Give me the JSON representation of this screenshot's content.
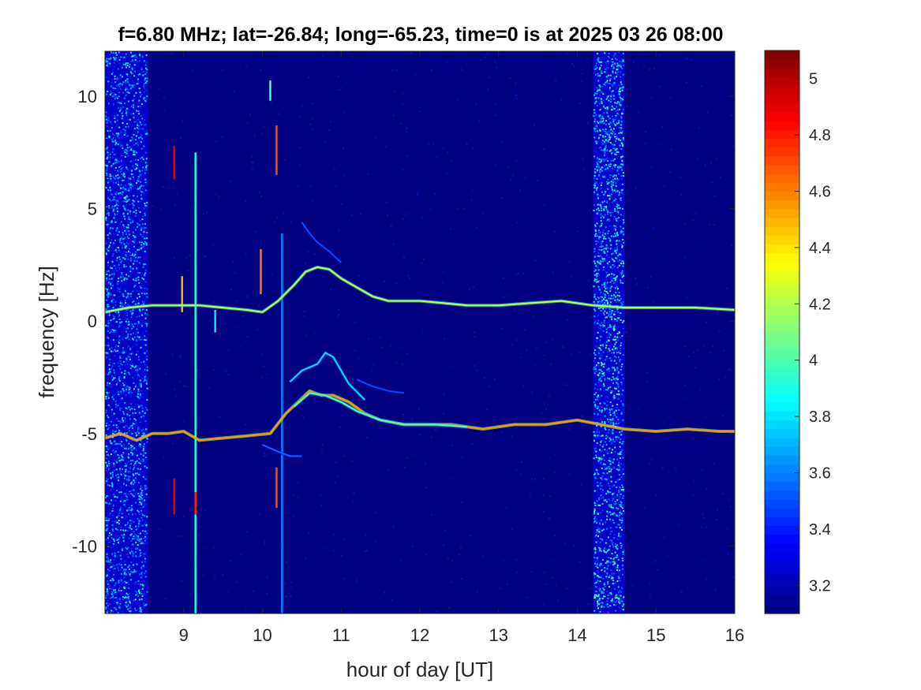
{
  "chart_data": {
    "type": "heatmap",
    "title": "f=6.80 MHz;  lat=-26.84; long=-65.23, time=0 is at 2025 03 26 08:00",
    "xlabel": "hour of day [UT]",
    "ylabel": "frequency [Hz]",
    "xlim": [
      8,
      16
    ],
    "ylim": [
      -13,
      12
    ],
    "xticks": [
      9,
      10,
      11,
      12,
      13,
      14,
      15,
      16
    ],
    "yticks": [
      -10,
      -5,
      0,
      5,
      10
    ],
    "colorbar": {
      "clim": [
        3.1,
        5.1
      ],
      "ticks": [
        3.2,
        3.4,
        3.6,
        3.8,
        4,
        4.2,
        4.4,
        4.6,
        4.8,
        5
      ],
      "colormap": "jet"
    },
    "noise_bands": [
      {
        "x_start": 8.0,
        "x_end": 8.55,
        "level": 3.75
      },
      {
        "x_start": 14.2,
        "x_end": 14.6,
        "level": 3.85
      }
    ],
    "traces": [
      {
        "points": [
          [
            8.0,
            0.4
          ],
          [
            8.3,
            0.6
          ],
          [
            8.6,
            0.7
          ],
          [
            8.9,
            0.7
          ],
          [
            9.2,
            0.7
          ],
          [
            9.5,
            0.6
          ],
          [
            9.8,
            0.5
          ],
          [
            10.0,
            0.4
          ],
          [
            10.2,
            0.9
          ],
          [
            10.4,
            1.6
          ],
          [
            10.55,
            2.2
          ],
          [
            10.7,
            2.4
          ],
          [
            10.85,
            2.3
          ],
          [
            11.0,
            1.9
          ],
          [
            11.2,
            1.5
          ],
          [
            11.4,
            1.1
          ],
          [
            11.6,
            0.9
          ],
          [
            11.8,
            0.9
          ],
          [
            12.0,
            0.9
          ],
          [
            12.3,
            0.8
          ],
          [
            12.6,
            0.7
          ],
          [
            13.0,
            0.7
          ],
          [
            13.4,
            0.8
          ],
          [
            13.8,
            0.9
          ],
          [
            14.2,
            0.7
          ],
          [
            14.6,
            0.6
          ],
          [
            15.0,
            0.6
          ],
          [
            15.5,
            0.6
          ],
          [
            16.0,
            0.5
          ]
        ],
        "level": 4.25
      },
      {
        "points": [
          [
            8.0,
            -5.2
          ],
          [
            8.2,
            -5.0
          ],
          [
            8.4,
            -5.3
          ],
          [
            8.6,
            -5.0
          ],
          [
            8.8,
            -5.0
          ],
          [
            9.0,
            -4.9
          ],
          [
            9.2,
            -5.3
          ],
          [
            9.5,
            -5.2
          ],
          [
            9.8,
            -5.1
          ],
          [
            10.1,
            -5.0
          ],
          [
            10.3,
            -4.1
          ],
          [
            10.45,
            -3.6
          ],
          [
            10.6,
            -3.1
          ],
          [
            10.75,
            -3.3
          ],
          [
            10.9,
            -3.3
          ],
          [
            11.1,
            -3.6
          ],
          [
            11.3,
            -4.1
          ],
          [
            11.5,
            -4.4
          ],
          [
            11.8,
            -4.6
          ],
          [
            12.1,
            -4.6
          ],
          [
            12.4,
            -4.6
          ],
          [
            12.8,
            -4.8
          ],
          [
            13.2,
            -4.6
          ],
          [
            13.6,
            -4.6
          ],
          [
            14.0,
            -4.4
          ],
          [
            14.3,
            -4.6
          ],
          [
            14.6,
            -4.8
          ],
          [
            15.0,
            -4.9
          ],
          [
            15.4,
            -4.8
          ],
          [
            15.8,
            -4.9
          ],
          [
            16.0,
            -4.9
          ]
        ],
        "level": 4.55
      },
      {
        "points": [
          [
            10.4,
            -3.8
          ],
          [
            10.6,
            -3.2
          ],
          [
            10.8,
            -3.3
          ],
          [
            11.0,
            -3.6
          ],
          [
            11.2,
            -4.0
          ],
          [
            11.5,
            -4.4
          ],
          [
            11.8,
            -4.6
          ],
          [
            12.2,
            -4.6
          ],
          [
            12.6,
            -4.7
          ]
        ],
        "level": 4.05
      },
      {
        "points": [
          [
            10.35,
            -2.7
          ],
          [
            10.5,
            -2.2
          ],
          [
            10.7,
            -1.9
          ],
          [
            10.8,
            -1.4
          ],
          [
            10.9,
            -1.6
          ],
          [
            11.0,
            -2.2
          ],
          [
            11.1,
            -2.8
          ],
          [
            11.3,
            -3.5
          ]
        ],
        "level": 3.8
      },
      {
        "points": [
          [
            10.5,
            4.4
          ],
          [
            10.6,
            3.9
          ],
          [
            10.7,
            3.5
          ],
          [
            10.85,
            3.1
          ],
          [
            11.0,
            2.6
          ]
        ],
        "level": 3.5
      },
      {
        "points": [
          [
            10.0,
            -5.5
          ],
          [
            10.2,
            -5.8
          ],
          [
            10.35,
            -6.0
          ],
          [
            10.5,
            -6.0
          ]
        ],
        "level": 3.55
      },
      {
        "points": [
          [
            11.2,
            -2.6
          ],
          [
            11.4,
            -2.9
          ],
          [
            11.6,
            -3.1
          ],
          [
            11.8,
            -3.2
          ]
        ],
        "level": 3.5
      }
    ],
    "spikes": [
      {
        "x": 8.88,
        "y_start": 6.3,
        "y_end": 7.8,
        "level": 4.9
      },
      {
        "x": 8.88,
        "y_start": -8.6,
        "y_end": -7.0,
        "level": 4.9
      },
      {
        "x": 8.98,
        "y_start": 0.4,
        "y_end": 2.0,
        "level": 4.5
      },
      {
        "x": 9.15,
        "y_start": -13.0,
        "y_end": 7.5,
        "level": 3.9
      },
      {
        "x": 9.15,
        "y_start": -8.6,
        "y_end": -7.6,
        "level": 4.8
      },
      {
        "x": 9.4,
        "y_start": -0.5,
        "y_end": 0.5,
        "level": 3.8
      },
      {
        "x": 9.98,
        "y_start": 1.2,
        "y_end": 3.2,
        "level": 4.6
      },
      {
        "x": 10.1,
        "y_start": 9.8,
        "y_end": 10.7,
        "level": 4.0
      },
      {
        "x": 10.18,
        "y_start": 6.5,
        "y_end": 8.7,
        "level": 4.7
      },
      {
        "x": 10.18,
        "y_start": -8.3,
        "y_end": -6.5,
        "level": 4.7
      },
      {
        "x": 10.25,
        "y_start": -13.0,
        "y_end": 3.9,
        "level": 3.6
      }
    ]
  }
}
